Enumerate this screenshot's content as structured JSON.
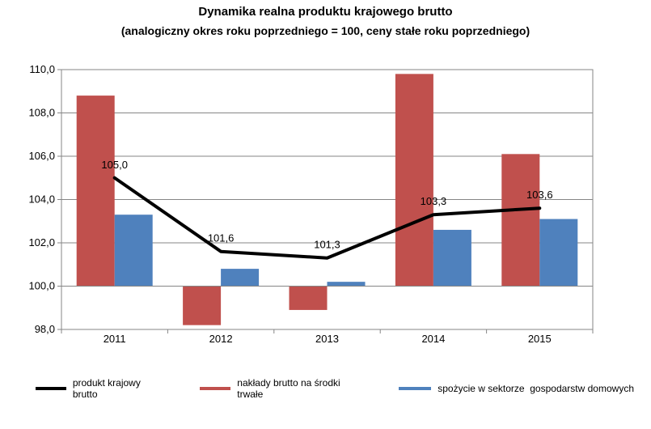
{
  "chart_data": {
    "type": "bar+line",
    "title": "Dynamika realna produktu krajowego brutto",
    "subtitle": "(analogiczny okres roku poprzedniego = 100, ceny stałe roku poprzedniego)",
    "categories": [
      "2011",
      "2012",
      "2013",
      "2014",
      "2015"
    ],
    "ylim": [
      98.0,
      110.0
    ],
    "yticks": [
      "98,0",
      "100,0",
      "102,0",
      "104,0",
      "106,0",
      "108,0",
      "110,0"
    ],
    "ytick_values": [
      98,
      100,
      102,
      104,
      106,
      108,
      110
    ],
    "baseline": 100,
    "series": [
      {
        "name": "produkt krajowy brutto",
        "kind": "line",
        "color": "#000000",
        "values": [
          105.0,
          101.6,
          101.3,
          103.3,
          103.6
        ],
        "labels": [
          "105,0",
          "101,6",
          "101,3",
          "103,3",
          "103,6"
        ]
      },
      {
        "name": "nakłady brutto na środki trwałe",
        "kind": "bar",
        "color": "#c0504d",
        "values": [
          108.8,
          98.2,
          98.9,
          109.8,
          106.1
        ]
      },
      {
        "name": "spożycie w sektorze  gospodarstw domowych",
        "kind": "bar",
        "color": "#4f81bd",
        "values": [
          103.3,
          100.8,
          100.2,
          102.6,
          103.1
        ]
      }
    ]
  }
}
